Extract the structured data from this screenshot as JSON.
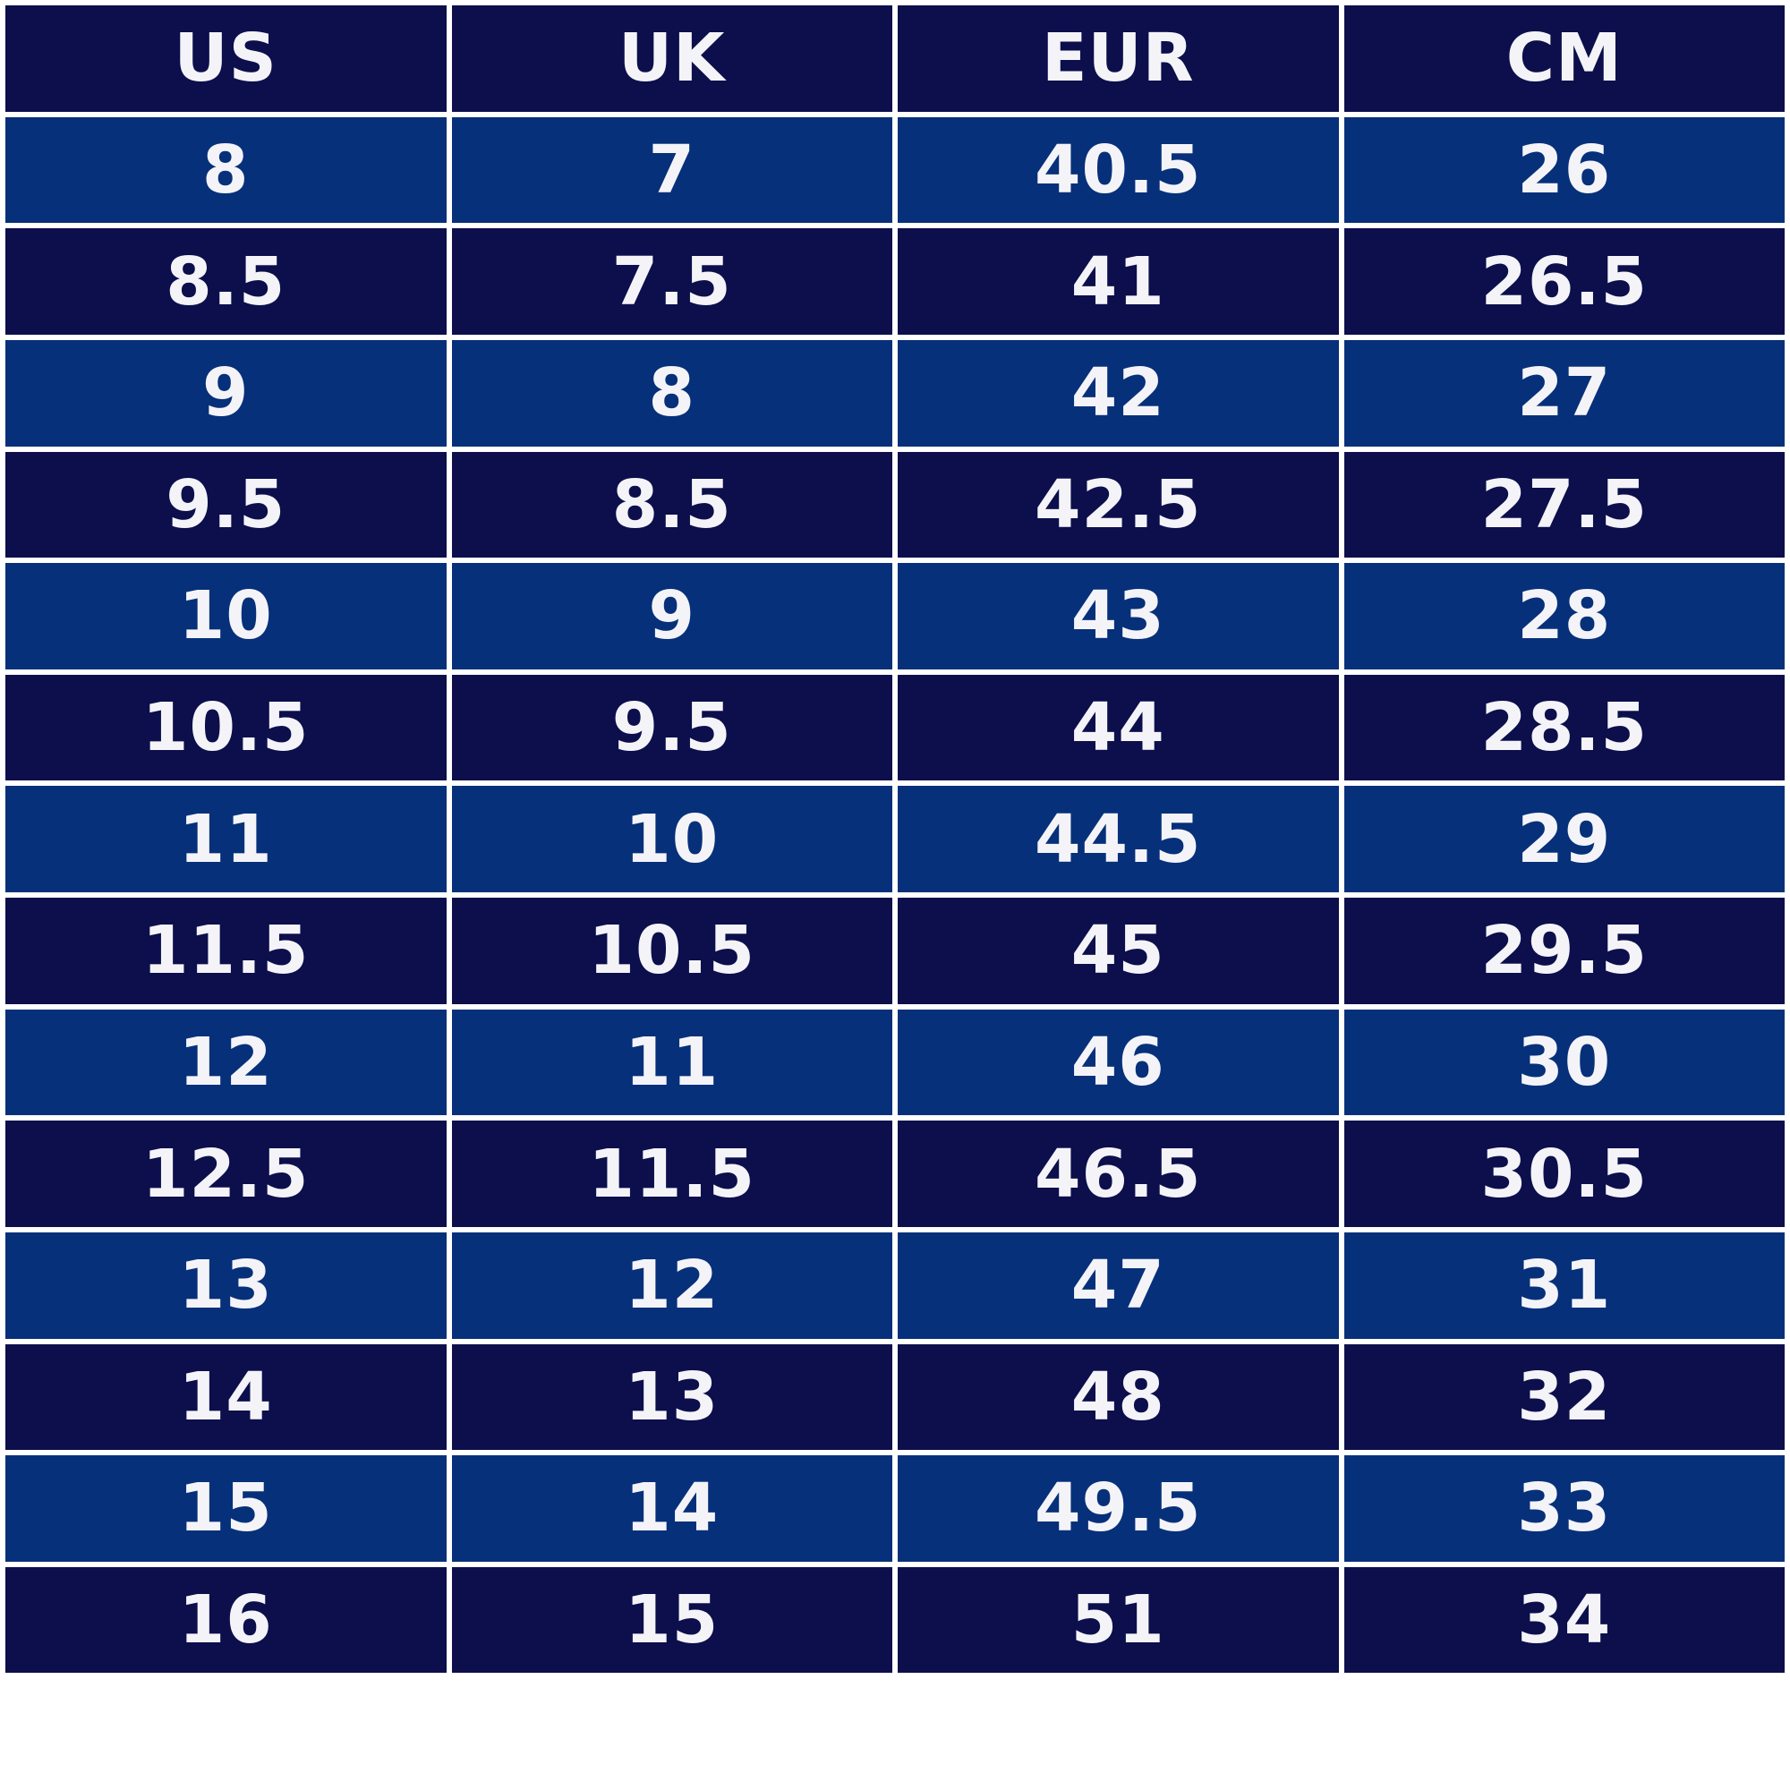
{
  "table": {
    "header": [
      "US",
      "UK",
      "EUR",
      "CM"
    ],
    "rows": [
      [
        "8",
        "7",
        "40.5",
        "26"
      ],
      [
        "8.5",
        "7.5",
        "41",
        "26.5"
      ],
      [
        "9",
        "8",
        "42",
        "27"
      ],
      [
        "9.5",
        "8.5",
        "42.5",
        "27.5"
      ],
      [
        "10",
        "9",
        "43",
        "28"
      ],
      [
        "10.5",
        "9.5",
        "44",
        "28.5"
      ],
      [
        "11",
        "10",
        "44.5",
        "29"
      ],
      [
        "11.5",
        "10.5",
        "45",
        "29.5"
      ],
      [
        "12",
        "11",
        "46",
        "30"
      ],
      [
        "12.5",
        "11.5",
        "46.5",
        "30.5"
      ],
      [
        "13",
        "12",
        "47",
        "31"
      ],
      [
        "14",
        "13",
        "48",
        "32"
      ],
      [
        "15",
        "14",
        "49.5",
        "33"
      ],
      [
        "16",
        "15",
        "51",
        "34"
      ]
    ]
  }
}
